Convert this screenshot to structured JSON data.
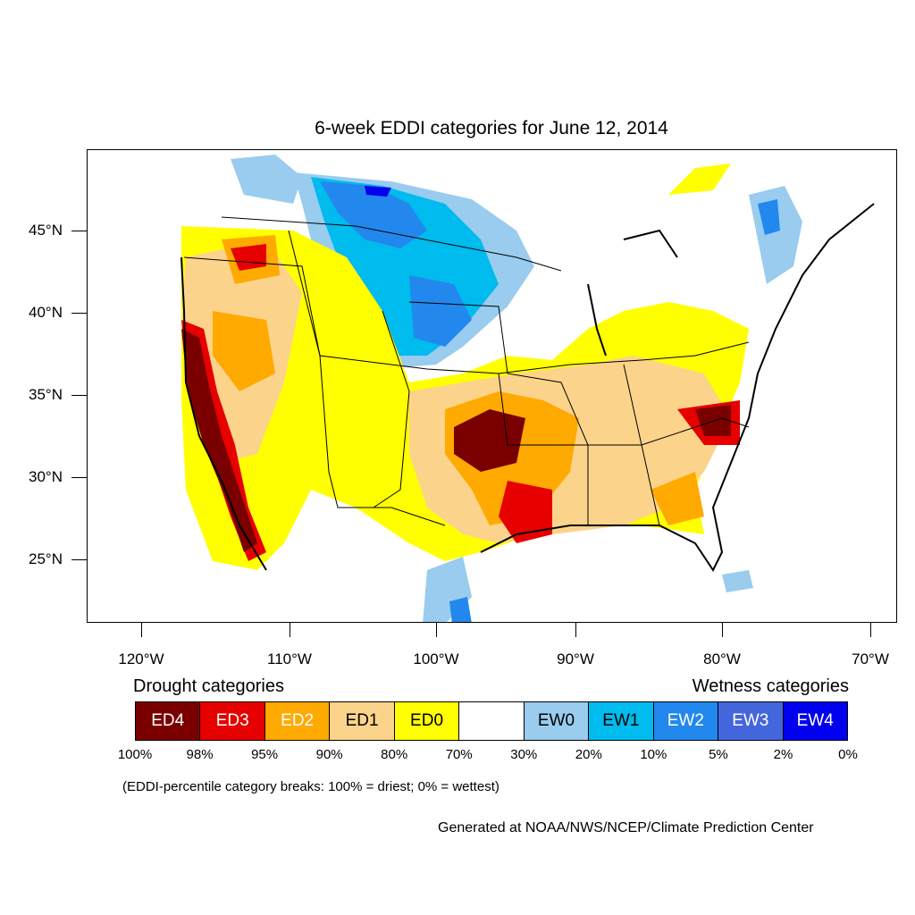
{
  "title": "6-week EDDI categories for June 12, 2014",
  "lat_labels": [
    "45°N",
    "40°N",
    "35°N",
    "30°N",
    "25°N"
  ],
  "lon_labels": [
    "120°W",
    "110°W",
    "100°W",
    "90°W",
    "80°W",
    "70°W"
  ],
  "legend": {
    "drought_title": "Drought categories",
    "wetness_title": "Wetness categories",
    "categories": [
      {
        "label": "ED4",
        "color": "#7a0000",
        "text_color": "#ffffff"
      },
      {
        "label": "ED3",
        "color": "#e60000",
        "text_color": "#ffffff"
      },
      {
        "label": "ED2",
        "color": "#ffaa00",
        "text_color": "#ffffff"
      },
      {
        "label": "ED1",
        "color": "#fcd38a",
        "text_color": "#000000"
      },
      {
        "label": "ED0",
        "color": "#ffff00",
        "text_color": "#000000"
      },
      {
        "label": "",
        "color": "#ffffff",
        "text_color": "#000000"
      },
      {
        "label": "EW0",
        "color": "#99ccee",
        "text_color": "#000000"
      },
      {
        "label": "EW1",
        "color": "#00bbee",
        "text_color": "#000000"
      },
      {
        "label": "EW2",
        "color": "#2288ee",
        "text_color": "#ffffff"
      },
      {
        "label": "EW3",
        "color": "#4466dd",
        "text_color": "#ffffff"
      },
      {
        "label": "EW4",
        "color": "#0000ee",
        "text_color": "#ffffff"
      }
    ],
    "breaks": [
      "100%",
      "98%",
      "95%",
      "90%",
      "80%",
      "70%",
      "30%",
      "20%",
      "10%",
      "5%",
      "2%",
      "0%"
    ]
  },
  "note": "(EDDI-percentile category breaks: 100% = driest; 0% = wettest)",
  "credit": "Generated at NOAA/NWS/NCEP/Climate Prediction Center"
}
